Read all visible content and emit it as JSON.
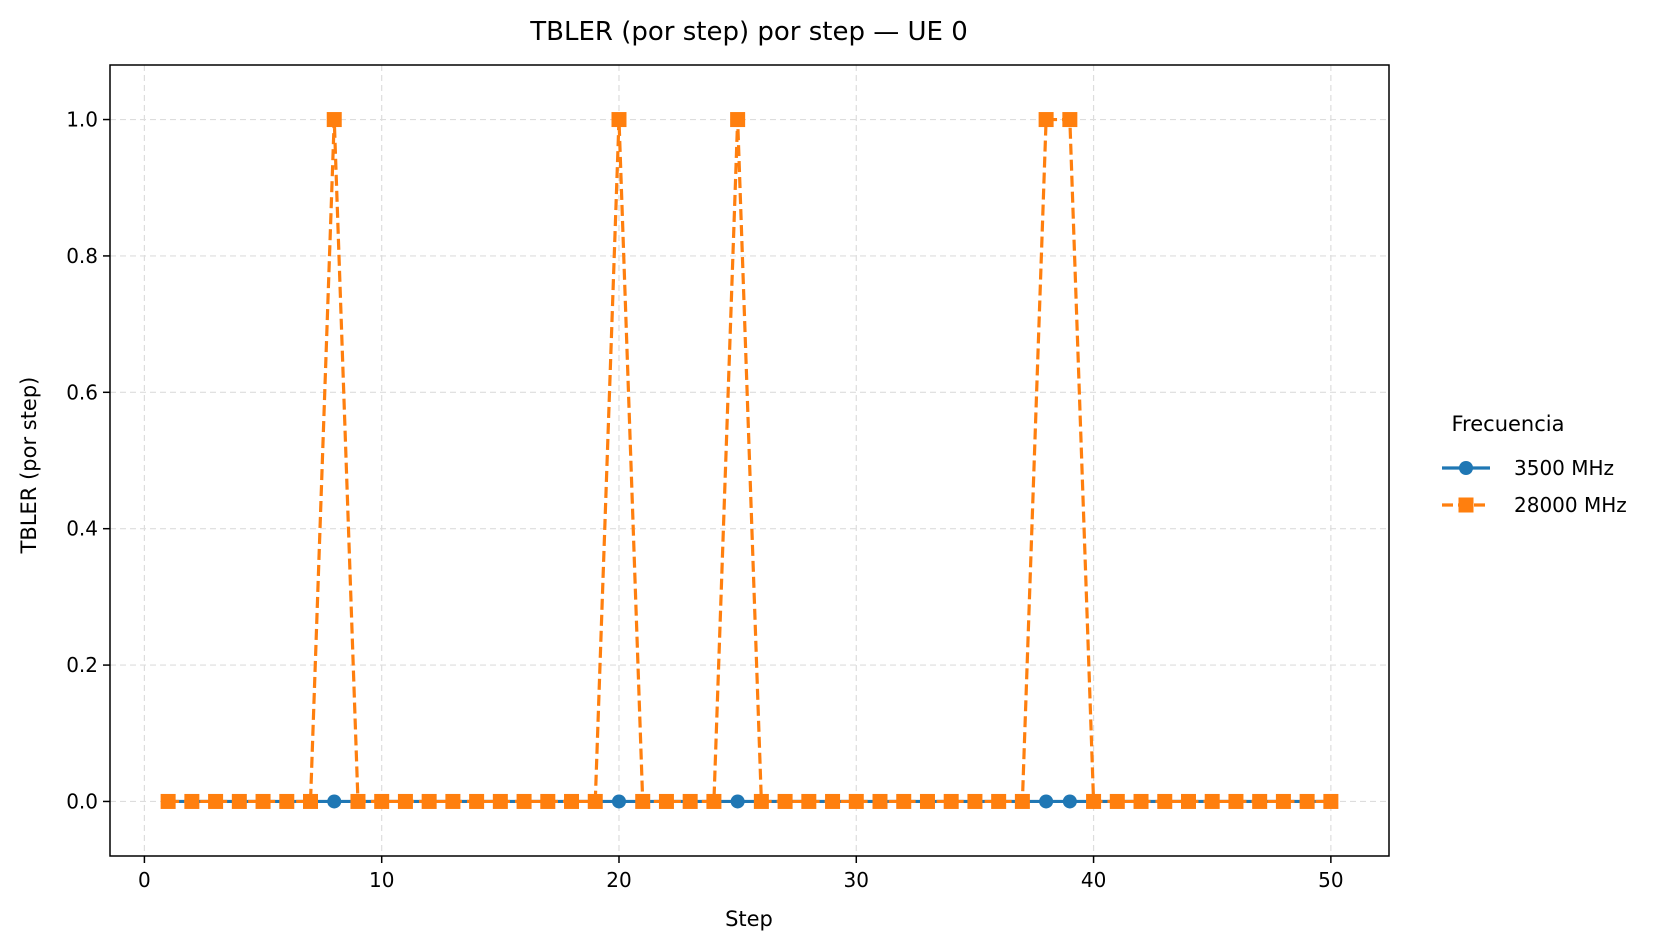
{
  "chart_data": {
    "type": "line",
    "title": "TBLER (por step) por step — UE 0",
    "xlabel": "Step",
    "ylabel": "TBLER (por step)",
    "xlim": [
      -1.45,
      52.45
    ],
    "ylim": [
      -0.08,
      1.08
    ],
    "xticks": [
      0,
      10,
      20,
      30,
      40,
      50
    ],
    "yticks": [
      0.0,
      0.2,
      0.4,
      0.6,
      0.8,
      1.0
    ],
    "xtick_labels": [
      "0",
      "10",
      "20",
      "30",
      "40",
      "50"
    ],
    "ytick_labels": [
      "0.0",
      "0.2",
      "0.4",
      "0.6",
      "0.8",
      "1.0"
    ],
    "grid": true,
    "legend": {
      "title": "Frecuencia",
      "placement": "outside-right"
    },
    "x": [
      1,
      2,
      3,
      4,
      5,
      6,
      7,
      8,
      9,
      10,
      11,
      12,
      13,
      14,
      15,
      16,
      17,
      18,
      19,
      20,
      21,
      22,
      23,
      24,
      25,
      26,
      27,
      28,
      29,
      30,
      31,
      32,
      33,
      34,
      35,
      36,
      37,
      38,
      39,
      40,
      41,
      42,
      43,
      44,
      45,
      46,
      47,
      48,
      49,
      50
    ],
    "series": [
      {
        "name": "3500 MHz",
        "color": "#1f77b4",
        "marker": "circle",
        "linestyle": "solid",
        "values": [
          0,
          0,
          0,
          0,
          0,
          0,
          0,
          0,
          0,
          0,
          0,
          0,
          0,
          0,
          0,
          0,
          0,
          0,
          0,
          0,
          0,
          0,
          0,
          0,
          0,
          0,
          0,
          0,
          0,
          0,
          0,
          0,
          0,
          0,
          0,
          0,
          0,
          0,
          0,
          0,
          0,
          0,
          0,
          0,
          0,
          0,
          0,
          0,
          0,
          0
        ]
      },
      {
        "name": "28000 MHz",
        "color": "#ff7f0e",
        "marker": "square",
        "linestyle": "dashed",
        "values": [
          0,
          0,
          0,
          0,
          0,
          0,
          0,
          1,
          0,
          0,
          0,
          0,
          0,
          0,
          0,
          0,
          0,
          0,
          0,
          1,
          0,
          0,
          0,
          0,
          1,
          0,
          0,
          0,
          0,
          0,
          0,
          0,
          0,
          0,
          0,
          0,
          0,
          1,
          1,
          0,
          0,
          0,
          0,
          0,
          0,
          0,
          0,
          0,
          0,
          0
        ]
      }
    ]
  }
}
